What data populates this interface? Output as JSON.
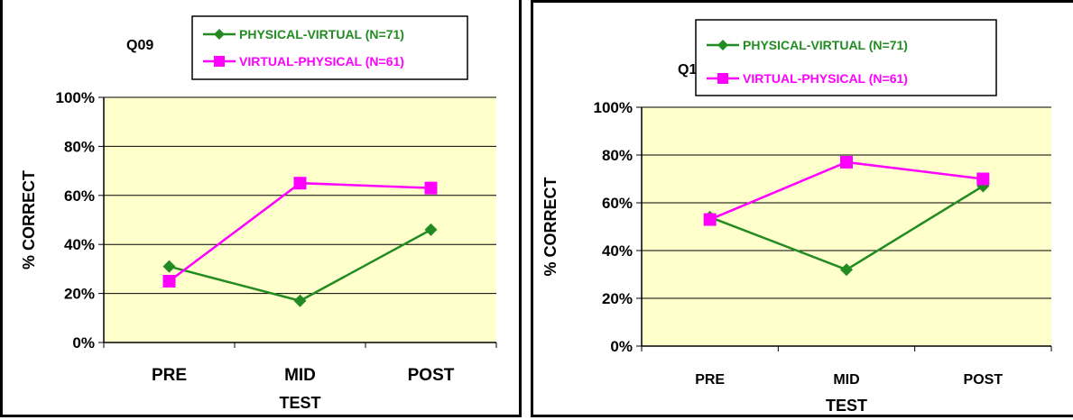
{
  "chart_data": [
    {
      "type": "line",
      "title": "Q09",
      "categories": [
        "PRE",
        "MID",
        "POST"
      ],
      "xlabel": "TEST",
      "ylabel": "% CORRECT",
      "ylim": [
        0,
        100
      ],
      "y_tick_labels": [
        "0%",
        "20%",
        "40%",
        "60%",
        "80%",
        "100%"
      ],
      "grid": true,
      "legend_position": "top",
      "plot_background": "#ffffcc",
      "series": [
        {
          "name": "PHYSICAL-VIRTUAL (N=71)",
          "values": [
            31,
            17,
            46
          ],
          "color": "#228b22",
          "marker": "diamond"
        },
        {
          "name": "VIRTUAL-PHYSICAL (N=61)",
          "values": [
            25,
            65,
            63
          ],
          "color": "#ff00ff",
          "marker": "square"
        }
      ]
    },
    {
      "type": "line",
      "title": "Q13",
      "categories": [
        "PRE",
        "MID",
        "POST"
      ],
      "xlabel": "TEST",
      "ylabel": "% CORRECT",
      "ylim": [
        0,
        100
      ],
      "y_tick_labels": [
        "0%",
        "20%",
        "40%",
        "60%",
        "80%",
        "100%"
      ],
      "grid": true,
      "legend_position": "top",
      "plot_background": "#ffffcc",
      "series": [
        {
          "name": "PHYSICAL-VIRTUAL (N=71)",
          "values": [
            54,
            32,
            67
          ],
          "color": "#228b22",
          "marker": "diamond"
        },
        {
          "name": "VIRTUAL-PHYSICAL (N=61)",
          "values": [
            53,
            77,
            70
          ],
          "color": "#ff00ff",
          "marker": "square"
        }
      ]
    }
  ]
}
